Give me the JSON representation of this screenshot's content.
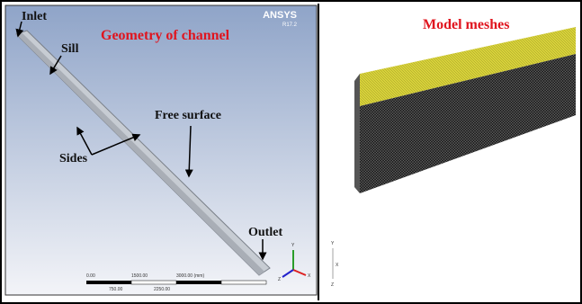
{
  "left_panel": {
    "title": "Geometry of channel",
    "logo": "ANSYS",
    "version": "R17.2",
    "labels": {
      "inlet": "Inlet",
      "sill": "Sill",
      "free_surface": "Free surface",
      "sides": "Sides",
      "outlet": "Outlet"
    },
    "scale_bar": {
      "top": [
        "0.00",
        "1500.00",
        "3000.00 (mm)"
      ],
      "bottom": [
        "750.00",
        "2250.00"
      ]
    },
    "triad": [
      "Y",
      "X",
      "Z"
    ]
  },
  "right_panel": {
    "title": "Model meshes",
    "triad": [
      "Y",
      "X",
      "Z"
    ]
  }
}
